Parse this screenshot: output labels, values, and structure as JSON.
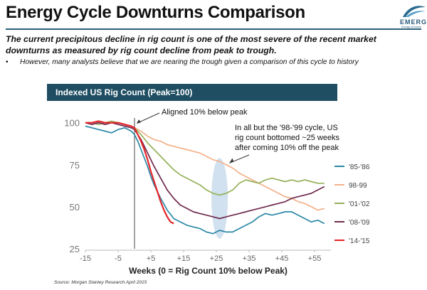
{
  "header": {
    "title": "Energy Cycle Downturns Comparison",
    "logo_text": "EMERGE",
    "logo_sub": "energy services"
  },
  "lead_text": "The current precipitous decline in rig count is one of the most severe of the recent market downturns as measured by rig count decline from peak to trough.",
  "bullet_text": "However, many analysts believe that we are nearing the trough given a comparison of this cycle to history",
  "source_text": "Source:  Morgan Stanley Research April 2015",
  "colors": {
    "banner": "#1f4e63",
    "s8586": "#2a88a6",
    "s9899": "#f4b088",
    "s0102": "#95b15a",
    "s0809": "#6f2a4f",
    "s1415": "#e5242a",
    "ellipse": "#c3d7ea"
  },
  "chart_data": {
    "type": "line",
    "title": "Indexed US Rig Count (Peak=100)",
    "xlabel": "Weeks (0 = Rig Count 10% below Peak)",
    "ylabel": "",
    "xlim": [
      -15,
      60
    ],
    "ylim": [
      25,
      102
    ],
    "x_ticks": [
      -15,
      -5,
      5,
      15,
      25,
      35,
      45,
      55
    ],
    "x_tick_labels": [
      "-15",
      "-5",
      "+5",
      "+15",
      "+25",
      "+35",
      "+45",
      "+55"
    ],
    "y_ticks": [
      25,
      50,
      75,
      100
    ],
    "y_tick_labels": [
      "25",
      "50",
      "75",
      "100"
    ],
    "grid": false,
    "legend": "right",
    "vline_x": 0,
    "annotations": [
      {
        "id": "aligned",
        "text": "Aligned 10% below peak",
        "target": [
          0,
          99
        ]
      },
      {
        "id": "bottom",
        "lines": [
          "In all but the '98-'99 cycle, US",
          "rig count bottomed ~25 weeks",
          "after coming 10% off the peak"
        ],
        "target": [
          29,
          76
        ]
      }
    ],
    "highlight_ellipse": {
      "cx": 26,
      "cy": 55,
      "rx": 2.5,
      "ry": 24
    },
    "series": [
      {
        "name": "'85-'86",
        "color": "#2a88a6",
        "x": [
          -15,
          -13,
          -11,
          -9,
          -7,
          -5,
          -3,
          -1,
          0,
          1,
          2,
          3,
          4,
          5,
          6,
          8,
          10,
          12,
          14,
          15,
          16,
          18,
          20,
          22,
          24,
          26,
          28,
          30,
          32,
          34,
          36,
          38,
          40,
          42,
          44,
          46,
          48,
          50,
          52,
          54,
          56,
          58
        ],
        "y": [
          98,
          97,
          96,
          95,
          94,
          96,
          97,
          95,
          93,
          89,
          84,
          79,
          74,
          68,
          63,
          55,
          48,
          43,
          41,
          40,
          39,
          38,
          37,
          35,
          34,
          36,
          35,
          35,
          37,
          39,
          41,
          44,
          46,
          45,
          46,
          47,
          47,
          45,
          43,
          41,
          42,
          40
        ]
      },
      {
        "name": "98-99",
        "color": "#f4b088",
        "x": [
          -15,
          -13,
          -11,
          -9,
          -7,
          -5,
          -3,
          -1,
          0,
          2,
          4,
          6,
          8,
          10,
          12,
          14,
          16,
          18,
          20,
          22,
          24,
          26,
          28,
          30,
          32,
          34,
          36,
          38,
          40,
          42,
          44,
          46,
          48,
          50,
          52,
          54,
          56,
          58
        ],
        "y": [
          100,
          99,
          100,
          99,
          100,
          100,
          99,
          98,
          97,
          95,
          92,
          90,
          89,
          87,
          86,
          85,
          84,
          83,
          82,
          80,
          78,
          77,
          75,
          73,
          70,
          68,
          66,
          64,
          62,
          60,
          58,
          56,
          55,
          53,
          52,
          50,
          48,
          49
        ]
      },
      {
        "name": "'01-'02",
        "color": "#95b15a",
        "x": [
          -15,
          -13,
          -11,
          -9,
          -7,
          -5,
          -3,
          -1,
          0,
          2,
          4,
          6,
          8,
          10,
          12,
          14,
          16,
          18,
          20,
          22,
          24,
          26,
          28,
          30,
          32,
          34,
          36,
          38,
          40,
          42,
          44,
          46,
          48,
          50,
          52,
          54,
          56,
          58
        ],
        "y": [
          100,
          100,
          99,
          100,
          101,
          100,
          99,
          98,
          97,
          93,
          88,
          84,
          80,
          76,
          72,
          69,
          67,
          65,
          63,
          60,
          58,
          57,
          58,
          60,
          64,
          66,
          65,
          64,
          66,
          67,
          66,
          65,
          66,
          65,
          66,
          65,
          64,
          64
        ]
      },
      {
        "name": "'08-'09",
        "color": "#6f2a4f",
        "x": [
          -15,
          -13,
          -11,
          -9,
          -7,
          -5,
          -3,
          -1,
          0,
          2,
          4,
          6,
          8,
          10,
          12,
          14,
          16,
          18,
          20,
          22,
          24,
          26,
          28,
          30,
          32,
          34,
          36,
          38,
          40,
          42,
          44,
          46,
          48,
          50,
          52,
          54,
          56,
          58
        ],
        "y": [
          100,
          99,
          100,
          99,
          100,
          99,
          98,
          97,
          96,
          90,
          82,
          74,
          67,
          60,
          55,
          51,
          49,
          47,
          46,
          45,
          44,
          43,
          44,
          45,
          46,
          47,
          48,
          49,
          50,
          51,
          52,
          53,
          55,
          56,
          57,
          58,
          60,
          62
        ]
      },
      {
        "name": "'14-'15",
        "color": "#e5242a",
        "x": [
          -15,
          -13,
          -11,
          -9,
          -7,
          -5,
          -3,
          -1,
          0,
          1,
          2,
          3,
          4,
          5,
          6,
          7,
          8,
          9,
          10,
          11,
          12
        ],
        "y": [
          100,
          100,
          101,
          100,
          100,
          100,
          99,
          98,
          97,
          93,
          89,
          84,
          78,
          71,
          65,
          59,
          53,
          48,
          44,
          41,
          40
        ]
      }
    ]
  }
}
